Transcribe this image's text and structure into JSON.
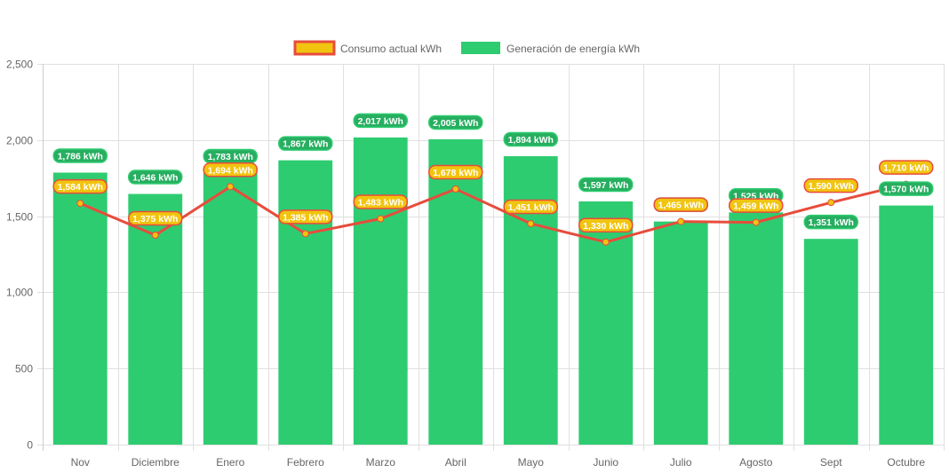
{
  "chart_data": {
    "type": "bar",
    "title": "",
    "xlabel": "",
    "ylabel": "",
    "ylim": [
      0,
      2500
    ],
    "yticks": [
      "0",
      "500",
      "1,000",
      "1,500",
      "2,000",
      "2,500"
    ],
    "ytick_values": [
      0,
      500,
      1000,
      1500,
      2000,
      2500
    ],
    "grid": true,
    "legend_position": "top-center",
    "categories": [
      "Nov",
      "Diciembre",
      "Enero",
      "Febrero",
      "Marzo",
      "Abril",
      "Mayo",
      "Junio",
      "Julio",
      "Agosto",
      "Sept",
      "Octubre"
    ],
    "series": [
      {
        "name": "Consumo actual kWh",
        "type": "line",
        "color": "#e74c3c",
        "point_color": "#f1c40f",
        "label_bg": "#f1c40f",
        "label_border": "#e74c3c",
        "values": [
          1584,
          1375,
          1694,
          1385,
          1483,
          1678,
          1451,
          1330,
          1465,
          1459,
          1590,
          1710
        ],
        "labels": [
          "1,584 kWh",
          "1,375 kWh",
          "1,694 kWh",
          "1,385 kWh",
          "1,483 kWh",
          "1,678 kWh",
          "1,451 kWh",
          "1,330 kWh",
          "1,465 kWh",
          "1,459 kWh",
          "1,590 kWh",
          "1,710 kWh"
        ]
      },
      {
        "name": "Generación de energía kWh",
        "type": "bar",
        "color": "#2ecc71",
        "label_bg": "#27ae60",
        "label_border": "#2ecc71",
        "values": [
          1786,
          1646,
          1783,
          1867,
          2017,
          2005,
          1894,
          1597,
          1465,
          1525,
          1351,
          1570
        ],
        "labels": [
          "1,786 kWh",
          "1,646 kWh",
          "1,783 kWh",
          "1,867 kWh",
          "2,017 kWh",
          "2,005 kWh",
          "1,894 kWh",
          "1,597 kWh",
          "1,465 kWh",
          "1,525 kWh",
          "1,351 kWh",
          "1,570 kWh"
        ]
      }
    ]
  }
}
